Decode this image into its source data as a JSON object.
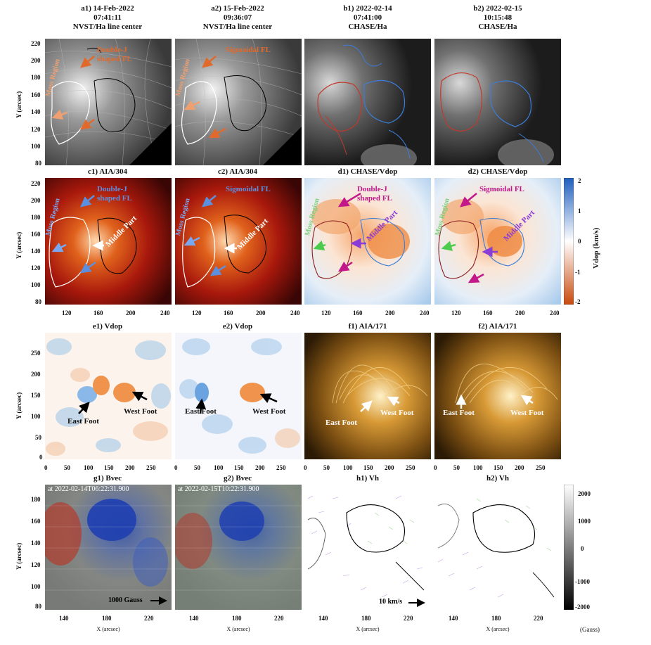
{
  "row1": {
    "a1": {
      "line1": "a1) 14-Feb-2022",
      "line2": "07:41:11",
      "line3": "NVST/Ha line center"
    },
    "a2": {
      "line1": "a2) 15-Feb-2022",
      "line2": "09:36:07",
      "line3": "NVST/Ha line center"
    },
    "b1": {
      "line1": "b1) 2022-02-14",
      "line2": "07:41:00",
      "line3": "CHASE/Ha"
    },
    "b2": {
      "line1": "b2) 2022-02-15",
      "line2": "10:15:48",
      "line3": "CHASE/Ha"
    },
    "ann": {
      "double_j": "Double-J",
      "shaped": "shaped FL",
      "sigmoidal": "Sigmoidal FL",
      "moss": "Moss Region"
    },
    "yticks": [
      "220",
      "200",
      "180",
      "160",
      "140",
      "120",
      "100",
      "80"
    ],
    "ylabel": "Y (arcsec)"
  },
  "row2": {
    "c1": "c1) AIA/304",
    "c2": "c2) AIA/304",
    "d1": "d1) CHASE/Vdop",
    "d2": "d2) CHASE/Vdop",
    "ann": {
      "double_j": "Double-J",
      "shaped": "shaped FL",
      "sigmoidal": "Sigmoidal FL",
      "moss": "Moss Region",
      "middle": "Middle Part"
    },
    "yticks": [
      "220",
      "200",
      "180",
      "160",
      "140",
      "120",
      "100",
      "80"
    ],
    "xticks": [
      "120",
      "160",
      "200",
      "240"
    ],
    "ylabel": "Y (arcsec)",
    "colorbar": {
      "label": "Vdop (km/s)",
      "ticks": [
        "2",
        "1",
        "0",
        "-1",
        "-2"
      ]
    }
  },
  "row3": {
    "e1": "e1) Vdop",
    "e2": "e2) Vdop",
    "f1": "f1) AIA/171",
    "f2": "f2) AIA/171",
    "ann": {
      "east": "East Foot",
      "west": "West Foot"
    },
    "yticks": [
      "250",
      "200",
      "150",
      "100",
      "50",
      "0"
    ],
    "xticks": [
      "0",
      "50",
      "100",
      "150",
      "200",
      "250"
    ],
    "ylabel": "Y (arcsec)"
  },
  "row4": {
    "g1": "g1) Bvec",
    "g2": "g2) Bvec",
    "h1": "h1) Vh",
    "h2": "h2) Vh",
    "g1_time": "at 2022-02-14T06:22:31.900",
    "g2_time": "at 2022-02-15T10:22:31.900",
    "gauss_scale": "1000 Gauss",
    "vel_scale": "10 km/s",
    "yticks": [
      "180",
      "160",
      "140",
      "120",
      "100",
      "80"
    ],
    "xticks": [
      "140",
      "180",
      "220"
    ],
    "ylabel": "Y (arcsec)",
    "xlabel": "X (arcsec)",
    "colorbar": {
      "label": "(Gauss)",
      "ticks": [
        "2000",
        "1000",
        "0",
        "-1000",
        "-2000"
      ]
    }
  },
  "colors": {
    "red_contour": "#c0392b",
    "blue_contour": "#3b7dd8",
    "orange_arrow": "#e06a2c",
    "magenta": "#c2188a",
    "purple": "#8a3cd8"
  }
}
